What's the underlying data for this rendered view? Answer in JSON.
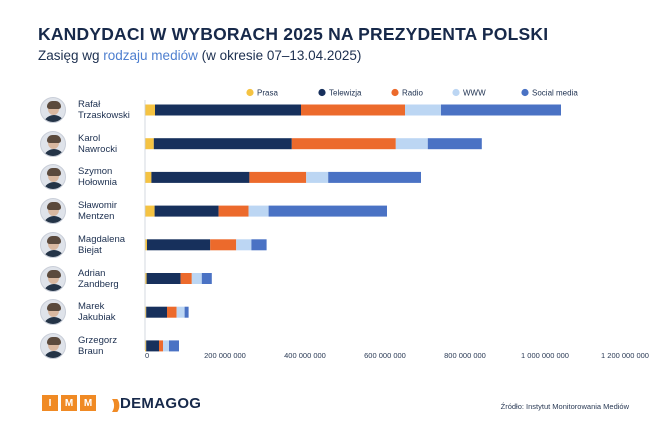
{
  "header": {
    "title": "KANDYDACI W WYBORACH 2025 NA PREZYDENTA POLSKI",
    "subtitle_pre": "Zasięg wg ",
    "subtitle_hl": "rodzaju mediów",
    "subtitle_post": " (w okresie 07–13.04.2025)"
  },
  "candidates": [
    {
      "line1": "Rafał",
      "line2": "Trzaskowski"
    },
    {
      "line1": "Karol",
      "line2": "Nawrocki"
    },
    {
      "line1": "Szymon",
      "line2": "Hołownia"
    },
    {
      "line1": "Sławomir",
      "line2": "Mentzen"
    },
    {
      "line1": "Magdalena",
      "line2": "Biejat"
    },
    {
      "line1": "Adrian",
      "line2": "Zandberg"
    },
    {
      "line1": "Marek",
      "line2": "Jakubiak"
    },
    {
      "line1": "Grzegorz",
      "line2": "Braun"
    }
  ],
  "chart_data": {
    "type": "bar",
    "orientation": "horizontal",
    "stacked": true,
    "title": "KANDYDACI W WYBORACH 2025 NA PREZYDENTA POLSKI",
    "subtitle": "Zasięg wg rodzaju mediów (w okresie 07–13.04.2025)",
    "legend_position": "top",
    "categories": [
      "Rafał Trzaskowski",
      "Karol Nawrocki",
      "Szymon Hołownia",
      "Sławomir Mentzen",
      "Magdalena Biejat",
      "Adrian Zandberg",
      "Marek Jakubiak",
      "Grzegorz Braun"
    ],
    "series": [
      {
        "name": "Prasa",
        "color": "#f5c342",
        "values": [
          25000000,
          22000000,
          16000000,
          24000000,
          5000000,
          4000000,
          3000000,
          3000000
        ]
      },
      {
        "name": "Telewizja",
        "color": "#17305c",
        "values": [
          365000000,
          345000000,
          245000000,
          160000000,
          158000000,
          85000000,
          52000000,
          32000000
        ]
      },
      {
        "name": "Radio",
        "color": "#ec6a2c",
        "values": [
          260000000,
          260000000,
          142000000,
          75000000,
          65000000,
          28000000,
          24000000,
          10000000
        ]
      },
      {
        "name": "WWW",
        "color": "#bcd6f3",
        "values": [
          90000000,
          80000000,
          55000000,
          50000000,
          38000000,
          25000000,
          20000000,
          15000000
        ]
      },
      {
        "name": "Social media",
        "color": "#4a72c4",
        "values": [
          300000000,
          135000000,
          232000000,
          296000000,
          38000000,
          25000000,
          10000000,
          25000000
        ]
      }
    ],
    "x_ticks": [
      "0",
      "200 000 000",
      "400 000 000",
      "600 000 000",
      "800 000 000",
      "1 000 000 000",
      "1 200 000 000"
    ],
    "xlim": [
      0,
      1200000000
    ],
    "grid": false
  },
  "footer": {
    "imm_letters": [
      "I",
      "M",
      "M"
    ],
    "demagog_waves": ")))",
    "demagog_label": "DEMAGOG",
    "source": "Źródło: Instytut Monitorowania Mediów"
  }
}
